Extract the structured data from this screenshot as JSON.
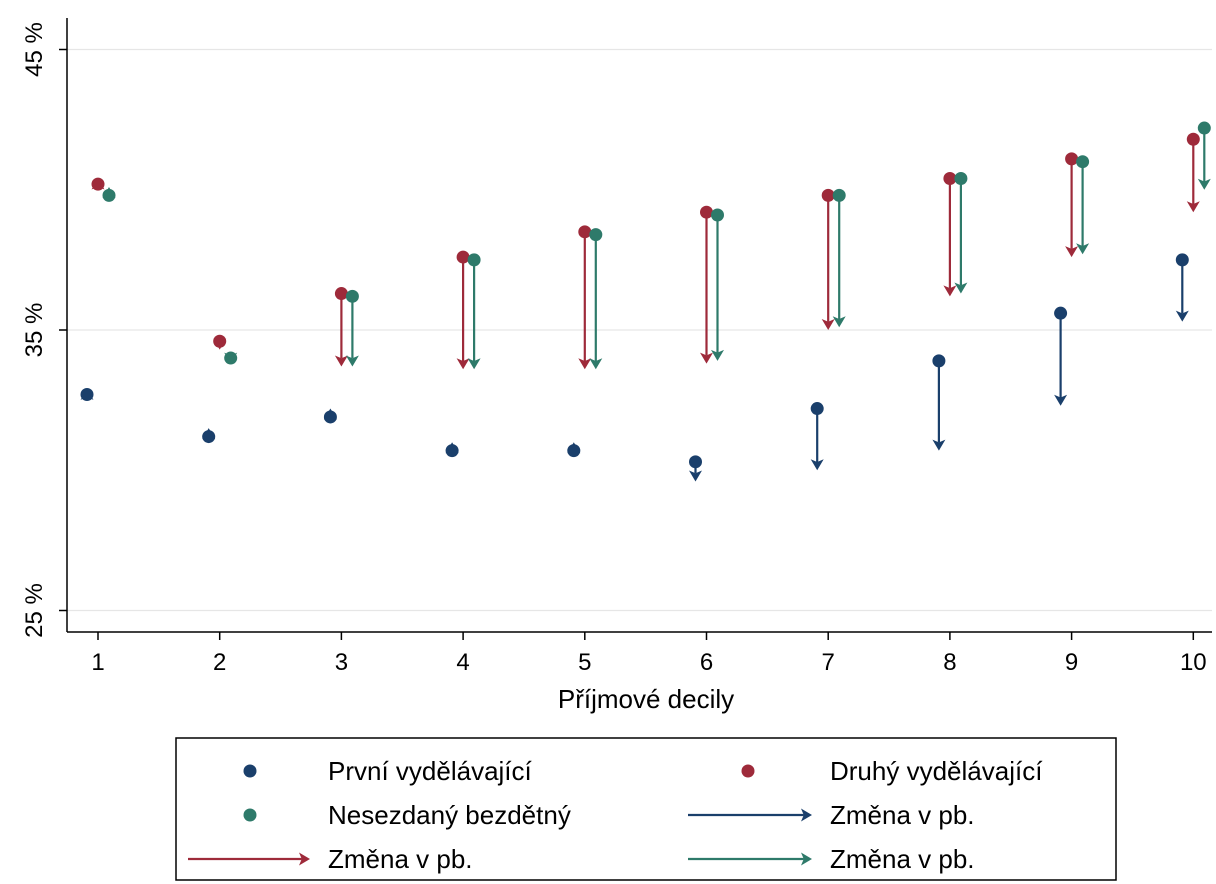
{
  "chart_data": {
    "type": "scatter",
    "title": "",
    "xlabel": "Příjmové decily",
    "ylabel": "",
    "x_ticks": [
      "1",
      "2",
      "3",
      "4",
      "5",
      "6",
      "7",
      "8",
      "9",
      "10"
    ],
    "y_ticks": [
      "25 %",
      "35 %",
      "45 %"
    ],
    "y_tick_values": [
      25,
      35,
      45
    ],
    "ylim": [
      24.3,
      45.1
    ],
    "xlim": [
      0.6,
      10.1
    ],
    "grid": true,
    "legend_position": "bottom",
    "series": [
      {
        "name": "První vydělávající",
        "color": "#1a3f6b",
        "points": [
          {
            "decile": 1,
            "value": 32.7,
            "change": 0.2
          },
          {
            "decile": 2,
            "value": 31.2,
            "change": 0.3
          },
          {
            "decile": 3,
            "value": 31.9,
            "change": 0.3
          },
          {
            "decile": 4,
            "value": 30.7,
            "change": 0.3
          },
          {
            "decile": 5,
            "value": 30.7,
            "change": 0.3
          },
          {
            "decile": 6,
            "value": 30.3,
            "change": -0.7
          },
          {
            "decile": 7,
            "value": 32.2,
            "change": -2.2
          },
          {
            "decile": 8,
            "value": 33.9,
            "change": -3.2
          },
          {
            "decile": 9,
            "value": 35.6,
            "change": -3.3
          },
          {
            "decile": 10,
            "value": 37.5,
            "change": -2.2
          }
        ]
      },
      {
        "name": "Druhý vydělávající",
        "color": "#9e2a3a",
        "points": [
          {
            "decile": 1,
            "value": 40.2,
            "change": 0.2
          },
          {
            "decile": 2,
            "value": 34.6,
            "change": -0.3
          },
          {
            "decile": 3,
            "value": 36.3,
            "change": -2.6
          },
          {
            "decile": 4,
            "value": 37.6,
            "change": -4.0
          },
          {
            "decile": 5,
            "value": 38.5,
            "change": -4.9
          },
          {
            "decile": 6,
            "value": 39.2,
            "change": -5.4
          },
          {
            "decile": 7,
            "value": 39.8,
            "change": -4.8
          },
          {
            "decile": 8,
            "value": 40.4,
            "change": -4.2
          },
          {
            "decile": 9,
            "value": 41.1,
            "change": -3.5
          },
          {
            "decile": 10,
            "value": 41.8,
            "change": -2.6
          }
        ]
      },
      {
        "name": "Nesezdaný bezdětný",
        "color": "#2e7a6a",
        "points": [
          {
            "decile": 1,
            "value": 39.8,
            "change": 0.3
          },
          {
            "decile": 2,
            "value": 34.0,
            "change": -0.2
          },
          {
            "decile": 3,
            "value": 36.2,
            "change": -2.5
          },
          {
            "decile": 4,
            "value": 37.5,
            "change": -3.9
          },
          {
            "decile": 5,
            "value": 38.4,
            "change": -4.8
          },
          {
            "decile": 6,
            "value": 39.1,
            "change": -5.2
          },
          {
            "decile": 7,
            "value": 39.8,
            "change": -4.7
          },
          {
            "decile": 8,
            "value": 40.4,
            "change": -4.1
          },
          {
            "decile": 9,
            "value": 41.0,
            "change": -3.3
          },
          {
            "decile": 10,
            "value": 42.2,
            "change": -2.2
          }
        ]
      }
    ],
    "legend": [
      {
        "label": "První vydělávající",
        "kind": "dot",
        "color": "#1a3f6b"
      },
      {
        "label": "Druhý vydělávající",
        "kind": "dot",
        "color": "#9e2a3a"
      },
      {
        "label": "Nesezdaný bezdětný",
        "kind": "dot",
        "color": "#2e7a6a"
      },
      {
        "label": "Změna v pb.",
        "kind": "arrow",
        "color": "#1a3f6b"
      },
      {
        "label": "Změna v pb.",
        "kind": "arrow",
        "color": "#9e2a3a"
      },
      {
        "label": "Změna v pb.",
        "kind": "arrow",
        "color": "#2e7a6a"
      }
    ]
  }
}
